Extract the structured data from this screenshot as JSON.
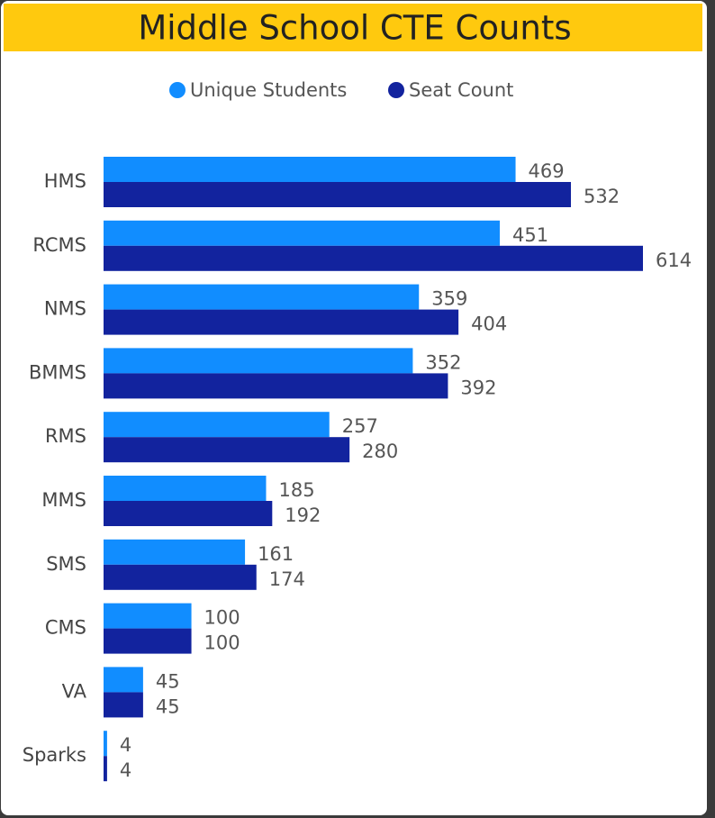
{
  "chart_data": {
    "type": "bar",
    "orientation": "horizontal",
    "title": "Middle School CTE Counts",
    "categories": [
      "HMS",
      "RCMS",
      "NMS",
      "BMMS",
      "RMS",
      "MMS",
      "SMS",
      "CMS",
      "VA",
      "Sparks"
    ],
    "series": [
      {
        "name": "Unique Students",
        "color": "#118DFF",
        "values": [
          469,
          451,
          359,
          352,
          257,
          185,
          161,
          100,
          45,
          4
        ]
      },
      {
        "name": "Seat Count",
        "color": "#12239E",
        "values": [
          532,
          614,
          404,
          392,
          280,
          192,
          174,
          100,
          45,
          4
        ]
      }
    ],
    "legend": "top"
  }
}
